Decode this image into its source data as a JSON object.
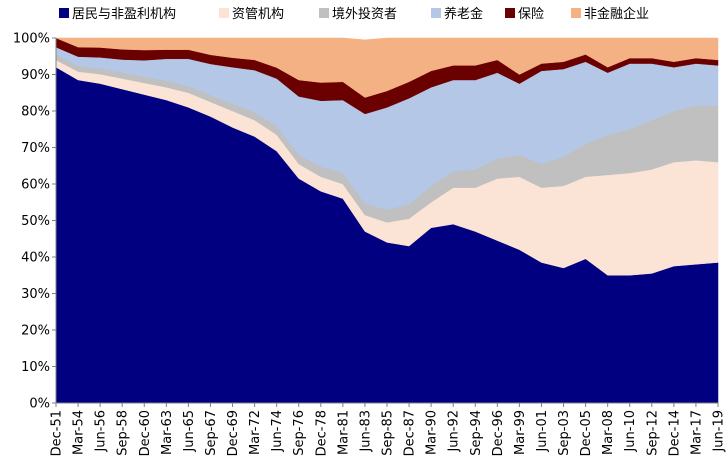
{
  "chart_data": {
    "type": "area",
    "stacked": true,
    "percent": true,
    "title": "",
    "xlabel": "",
    "ylabel": "",
    "ylim": [
      0,
      100
    ],
    "y_ticks": [
      "0%",
      "10%",
      "20%",
      "30%",
      "40%",
      "50%",
      "60%",
      "70%",
      "80%",
      "90%",
      "100%"
    ],
    "x_tick_labels": [
      "Dec-51",
      "Mar-54",
      "Jun-56",
      "Sep-58",
      "Dec-60",
      "Mar-63",
      "Jun-65",
      "Sep-67",
      "Dec-69",
      "Mar-72",
      "Jun-74",
      "Sep-76",
      "Dec-78",
      "Mar-81",
      "Jun-83",
      "Sep-85",
      "Dec-87",
      "Mar-90",
      "Jun-92",
      "Sep-94",
      "Dec-96",
      "Mar-99",
      "Jun-01",
      "Sep-03",
      "Dec-05",
      "Mar-08",
      "Jun-10",
      "Sep-12",
      "Dec-14",
      "Mar-17",
      "Jun-19"
    ],
    "x": [
      "Dec-51",
      "Mar-54",
      "Jun-56",
      "Sep-58",
      "Dec-60",
      "Mar-63",
      "Jun-65",
      "Sep-67",
      "Dec-69",
      "Mar-72",
      "Jun-74",
      "Sep-76",
      "Dec-78",
      "Mar-81",
      "Jun-83",
      "Sep-85",
      "Dec-87",
      "Mar-90",
      "Jun-92",
      "Sep-94",
      "Dec-96",
      "Mar-99",
      "Jun-01",
      "Sep-03",
      "Dec-05",
      "Mar-08",
      "Jun-10",
      "Sep-12",
      "Dec-14",
      "Mar-17",
      "Jun-19"
    ],
    "legend_position": "top",
    "grid": false,
    "series": [
      {
        "name": "居民与非盈利机构",
        "color": "#000080",
        "values": [
          92,
          88.5,
          87.5,
          86,
          84.5,
          83,
          81,
          78.5,
          75.5,
          73,
          69,
          61.5,
          58,
          56,
          47,
          44,
          43,
          48,
          49,
          47,
          44.5,
          42,
          38.5,
          37,
          39.5,
          35,
          35,
          35.5,
          37.5,
          38,
          38.5
        ]
      },
      {
        "name": "资管机构",
        "color": "#fbe3d6",
        "values": [
          2,
          2.3,
          2.6,
          2.9,
          3.2,
          3.5,
          4,
          4,
          4.5,
          4.5,
          4.5,
          4,
          4,
          4,
          4.5,
          5.5,
          7.5,
          7,
          10,
          12,
          17,
          20,
          20.5,
          22.5,
          22.5,
          27.5,
          28,
          28.5,
          28.5,
          28.5,
          27.5
        ]
      },
      {
        "name": "境外投资者",
        "color": "#c0c0c0",
        "values": [
          1.5,
          1.6,
          1.6,
          1.7,
          1.7,
          1.8,
          1.8,
          1.9,
          2,
          2.2,
          2.4,
          2.5,
          2.8,
          3,
          3.2,
          3.5,
          4,
          4.5,
          4.5,
          5,
          5.5,
          6,
          6.5,
          8,
          9,
          11,
          12,
          13.5,
          14,
          15,
          15.5
        ]
      },
      {
        "name": "养老金",
        "color": "#b4c7e7",
        "values": [
          2,
          2.5,
          3,
          3.5,
          4.5,
          6,
          7.5,
          8.5,
          10,
          11.5,
          13,
          16,
          18,
          20,
          24.5,
          28,
          29,
          27,
          25,
          24.5,
          23.5,
          19.5,
          25.5,
          24,
          22.5,
          17,
          18,
          15.5,
          12,
          11.5,
          11
        ]
      },
      {
        "name": "保险",
        "color": "#6b0000",
        "values": [
          2.5,
          2.6,
          2.7,
          2.8,
          2.8,
          2.5,
          2.5,
          2.5,
          2.6,
          2.8,
          3,
          4.5,
          5,
          5,
          4.5,
          4.5,
          4.5,
          4.5,
          4,
          4,
          3.5,
          2.5,
          2,
          2,
          2,
          1.5,
          1.5,
          1.5,
          1.5,
          1.5,
          1.5
        ]
      },
      {
        "name": "非金融企业",
        "color": "#f4b183",
        "values": [
          0,
          2.5,
          2.6,
          3.1,
          3.3,
          3.2,
          3.2,
          4.6,
          5.4,
          6,
          8.1,
          11.5,
          12.2,
          12,
          15.8,
          14.5,
          12,
          9,
          7.5,
          7.5,
          6,
          10,
          7,
          6.5,
          4.5,
          8,
          5.5,
          5.5,
          6.5,
          5.5,
          6
        ]
      }
    ]
  }
}
